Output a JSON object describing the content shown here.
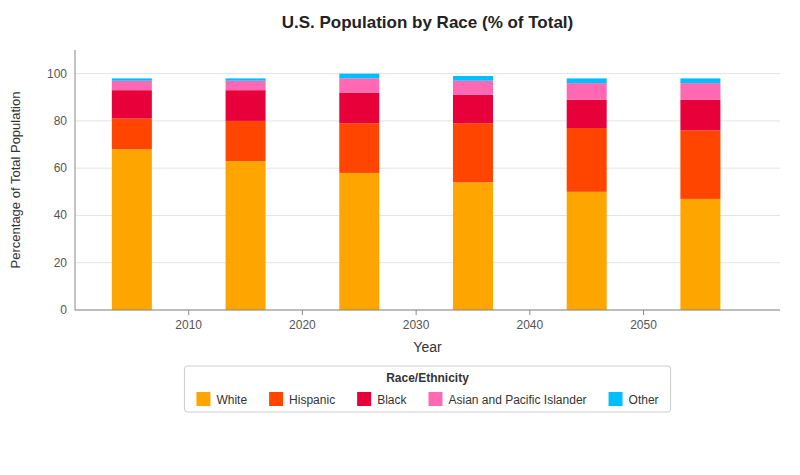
{
  "chart_data": {
    "type": "bar",
    "stacked": true,
    "title": "U.S. Population by Race (% of Total)",
    "xlabel": "Year",
    "ylabel": "Percentage of Total Population",
    "legend_title": "Race/Ethnicity",
    "legend": "bottom",
    "grid": true,
    "x": [
      2005,
      2015,
      2025,
      2035,
      2045,
      2055
    ],
    "series": [
      {
        "name": "White",
        "color": "#FFA500",
        "values": [
          68,
          63,
          58,
          54,
          50,
          47
        ]
      },
      {
        "name": "Hispanic",
        "color": "#FF4500",
        "values": [
          13,
          17,
          21,
          25,
          27,
          29
        ]
      },
      {
        "name": "Black",
        "color": "#E8003A",
        "values": [
          12,
          13,
          13,
          12,
          12,
          13
        ]
      },
      {
        "name": "Asian and Pacific Islander",
        "color": "#FF69B4",
        "values": [
          4,
          4,
          6,
          6,
          7,
          7
        ]
      },
      {
        "name": "Other",
        "color": "#00BFFF",
        "values": [
          1,
          1,
          2,
          2,
          2,
          2
        ]
      }
    ],
    "xlim": [
      2000,
      2062
    ],
    "xticks": [
      2010,
      2020,
      2030,
      2040,
      2050
    ],
    "ylim": [
      0,
      110
    ],
    "yticks": [
      0,
      20,
      40,
      60,
      80,
      100
    ]
  }
}
